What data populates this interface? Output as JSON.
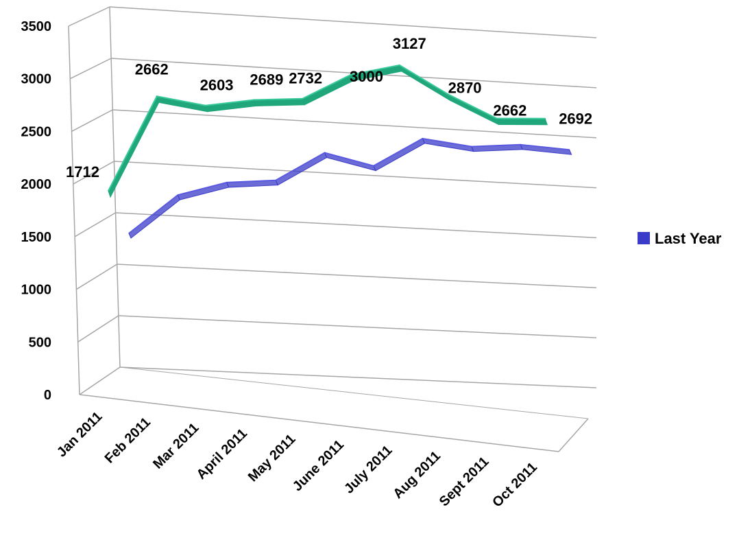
{
  "chart_data": {
    "type": "line",
    "categories": [
      "Jan 2011",
      "Feb 2011",
      "Mar 2011",
      "April 2011",
      "May 2011",
      "June 2011",
      "July 2011",
      "Aug 2011",
      "Sept 2011",
      "Oct 2011"
    ],
    "series": [
      {
        "name": "",
        "color": "#1fa67a",
        "values": [
          1712,
          2662,
          2603,
          2689,
          2732,
          3000,
          3127,
          2870,
          2662,
          2692
        ],
        "labels": [
          "1712",
          "2662",
          "2603",
          "2689",
          "2732",
          "3000",
          "3127",
          "2870",
          "2662",
          "2692"
        ]
      },
      {
        "name": "Last Year",
        "color": "#3b3bc9",
        "values": [
          1300,
          1700,
          1850,
          1900,
          2200,
          2100,
          2400,
          2350,
          2400,
          2380
        ]
      }
    ],
    "yticks": [
      "0",
      "500",
      "1000",
      "1500",
      "2000",
      "2500",
      "3000",
      "3500"
    ],
    "ylim": [
      0,
      3500
    ],
    "title": "",
    "xlabel": "",
    "ylabel": "",
    "grid": true,
    "legend_position": "right",
    "style": "3d-line"
  }
}
